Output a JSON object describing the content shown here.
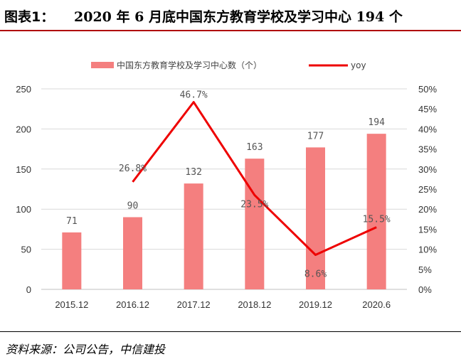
{
  "header": {
    "label": "图表1：",
    "title": "2020 年 6 月底中国东方教育学校及学习中心 194 个"
  },
  "source": "资料来源：公司公告，中信建投",
  "colors": {
    "bar": "#f47f7f",
    "line": "#ee0000",
    "grid": "#d9d9d9",
    "axis": "#bfbfbf"
  },
  "chart_data": {
    "type": "bar+line",
    "categories": [
      "2015.12",
      "2016.12",
      "2017.12",
      "2018.12",
      "2019.12",
      "2020.6"
    ],
    "series": [
      {
        "name": "中国东方教育学校及学习中心数（个）",
        "type": "bar",
        "axis": "left",
        "values": [
          71,
          90,
          132,
          163,
          177,
          194
        ],
        "labels": [
          "71",
          "90",
          "132",
          "163",
          "177",
          "194"
        ]
      },
      {
        "name": "yoy",
        "type": "line",
        "axis": "right",
        "values": [
          null,
          26.8,
          46.7,
          23.5,
          8.6,
          15.5
        ],
        "labels": [
          "",
          "26.8%",
          "46.7%",
          "23.5%",
          "8.6%",
          "15.5%"
        ]
      }
    ],
    "left_axis": {
      "min": 0,
      "max": 250,
      "step": 50,
      "tick_labels": [
        "0",
        "50",
        "100",
        "150",
        "200",
        "250"
      ]
    },
    "right_axis": {
      "min": 0,
      "max": 50,
      "step": 5,
      "tick_labels": [
        "0%",
        "5%",
        "10%",
        "15%",
        "20%",
        "25%",
        "30%",
        "35%",
        "40%",
        "45%",
        "50%"
      ]
    },
    "legend_position": "top",
    "grid": true
  }
}
